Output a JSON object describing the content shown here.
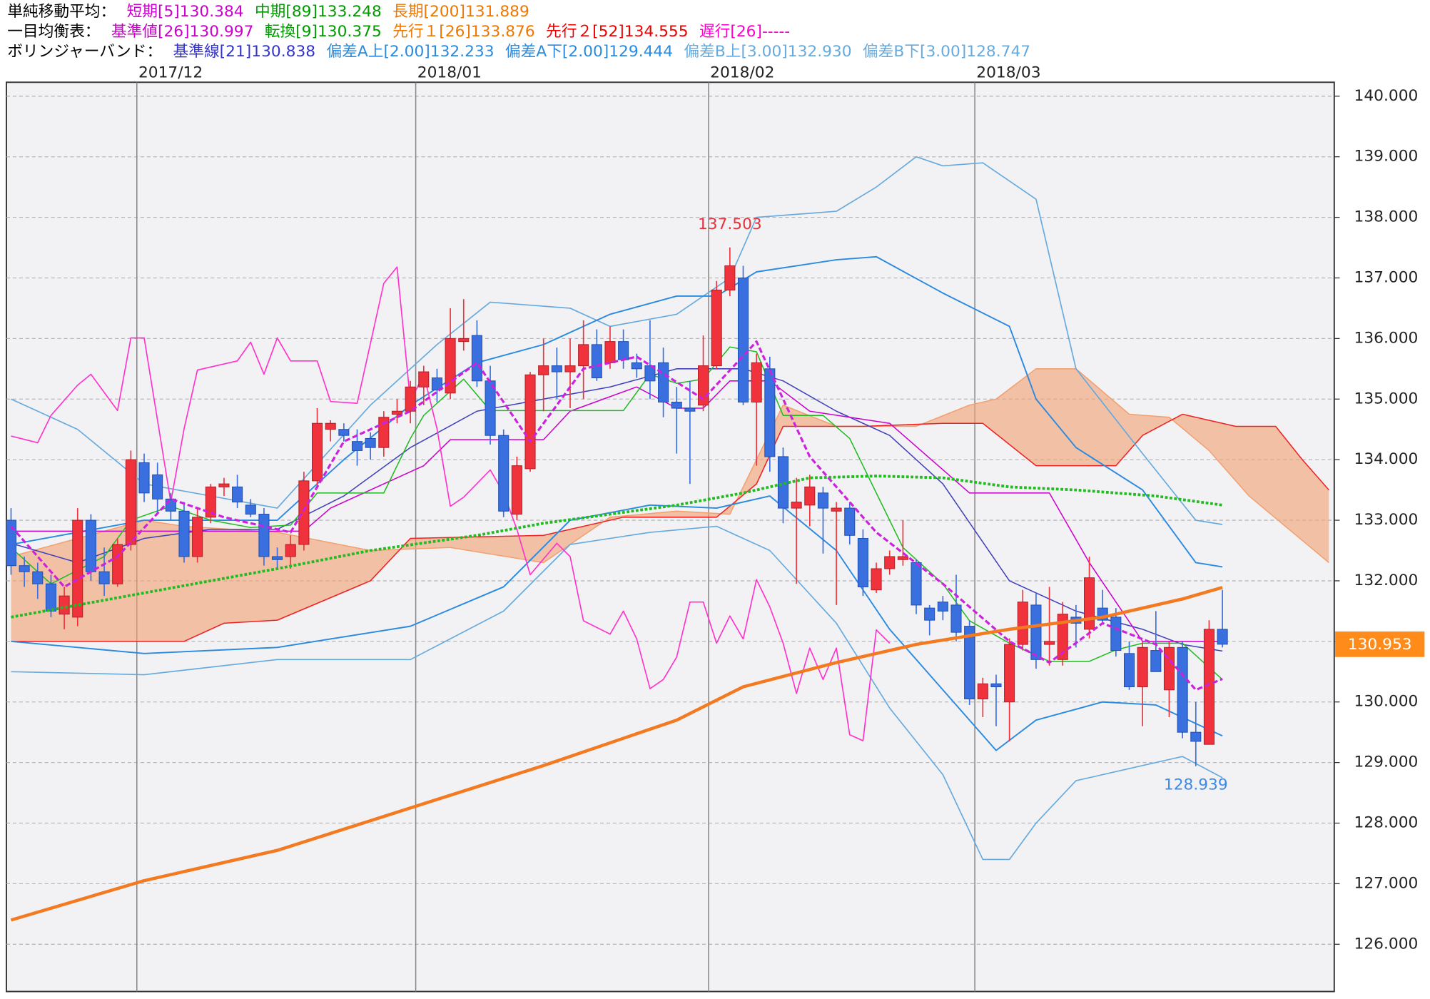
{
  "chart_data": {
    "type": "candlestick",
    "header": [
      [
        {
          "text": "単純移動平均：",
          "color": "#000000"
        },
        {
          "text": "短期[5]130.384",
          "color": "#cc00cc"
        },
        {
          "text": "中期[89]133.248",
          "color": "#009900"
        },
        {
          "text": "長期[200]131.889",
          "color": "#ee7700"
        }
      ],
      [
        {
          "text": "一目均衡表：",
          "color": "#000000"
        },
        {
          "text": "基準値[26]130.997",
          "color": "#cc00cc"
        },
        {
          "text": "転換[9]130.375",
          "color": "#009900"
        },
        {
          "text": "先行１[26]133.876",
          "color": "#ee7700"
        },
        {
          "text": "先行２[52]134.555",
          "color": "#ee0000"
        },
        {
          "text": "遅行[26]-----",
          "color": "#ff00cc"
        }
      ],
      [
        {
          "text": "ボリンジャーバンド：",
          "color": "#000000"
        },
        {
          "text": "基準線[21]130.838",
          "color": "#3333cc"
        },
        {
          "text": "偏差A上[2.00]132.233",
          "color": "#2a8ae0"
        },
        {
          "text": "偏差A下[2.00]129.444",
          "color": "#2a8ae0"
        },
        {
          "text": "偏差B上[3.00]132.930",
          "color": "#66aadd"
        },
        {
          "text": "偏差B下[3.00]128.747",
          "color": "#66aadd"
        }
      ]
    ],
    "open": [
      133.0,
      132.25,
      132.15,
      131.95,
      131.45,
      131.4,
      133.0,
      132.15,
      131.95,
      132.6,
      133.95,
      133.75,
      133.35,
      133.15,
      132.4,
      133.05,
      133.55,
      133.55,
      133.25,
      133.1,
      132.4,
      132.4,
      132.6,
      133.65,
      134.5,
      134.5,
      134.3,
      134.35,
      134.2,
      134.75,
      134.8,
      135.2,
      135.35,
      135.1,
      135.95,
      136.05,
      135.3,
      134.4,
      133.1,
      133.85,
      135.4,
      135.55,
      135.45,
      135.55,
      135.9,
      135.6,
      135.95,
      135.6,
      135.55,
      135.6,
      134.95,
      134.85,
      134.9,
      135.55,
      136.8,
      137.0,
      134.95,
      135.5,
      134.05,
      133.2,
      133.25,
      133.45,
      133.15,
      133.2,
      132.7,
      131.85,
      132.2,
      132.35,
      132.3,
      131.55,
      131.65,
      131.6,
      131.25,
      130.05,
      130.3,
      130.0,
      130.95,
      131.6,
      130.95,
      130.7,
      131.4,
      131.2,
      131.55,
      131.4,
      130.8,
      130.25,
      130.85,
      130.2,
      130.9,
      129.5,
      129.3,
      131.2
    ],
    "high": [
      133.2,
      132.4,
      132.3,
      132.1,
      131.9,
      133.2,
      133.1,
      132.55,
      132.7,
      134.15,
      134.1,
      133.95,
      133.45,
      133.3,
      133.2,
      133.6,
      133.7,
      133.75,
      133.35,
      133.2,
      132.55,
      132.75,
      133.8,
      134.85,
      134.65,
      134.6,
      134.5,
      134.45,
      134.8,
      135.0,
      135.3,
      135.55,
      135.5,
      136.5,
      136.65,
      136.3,
      135.55,
      134.5,
      134.05,
      135.45,
      136.0,
      135.85,
      136.0,
      136.3,
      136.15,
      136.2,
      136.15,
      135.75,
      136.3,
      135.85,
      135.2,
      135.3,
      136.05,
      136.95,
      137.503,
      137.2,
      135.75,
      135.7,
      134.2,
      133.7,
      133.75,
      133.55,
      133.3,
      133.3,
      132.85,
      132.3,
      132.5,
      133.0,
      132.35,
      131.6,
      131.75,
      132.1,
      131.35,
      130.4,
      130.45,
      131.05,
      131.85,
      131.8,
      131.9,
      131.65,
      131.6,
      132.4,
      131.85,
      131.55,
      131.0,
      131.0,
      131.5,
      131.0,
      131.0,
      130.0,
      131.35,
      131.85
    ],
    "low": [
      132.1,
      131.9,
      131.7,
      131.4,
      131.2,
      131.25,
      132.0,
      131.75,
      131.9,
      132.5,
      133.3,
      133.1,
      133.0,
      132.3,
      132.3,
      132.95,
      133.4,
      133.2,
      133.05,
      132.25,
      132.2,
      132.2,
      132.5,
      133.55,
      134.3,
      134.3,
      133.9,
      134.0,
      134.05,
      134.6,
      134.6,
      134.9,
      134.95,
      135.0,
      135.8,
      135.2,
      134.25,
      133.05,
      133.0,
      133.8,
      134.8,
      135.0,
      134.85,
      135.0,
      135.3,
      135.5,
      135.5,
      135.35,
      135.0,
      134.7,
      134.1,
      133.6,
      134.8,
      135.5,
      136.7,
      134.9,
      133.9,
      133.8,
      132.95,
      131.95,
      132.9,
      132.45,
      131.6,
      132.6,
      131.75,
      131.8,
      132.1,
      132.25,
      131.45,
      131.1,
      131.35,
      131.0,
      129.95,
      129.75,
      129.6,
      129.35,
      130.85,
      130.55,
      130.6,
      130.6,
      130.9,
      131.05,
      131.3,
      130.75,
      130.2,
      129.6,
      130.5,
      129.75,
      129.4,
      128.939,
      129.3,
      130.9
    ],
    "close": [
      132.25,
      132.15,
      131.95,
      131.5,
      131.75,
      133.0,
      132.15,
      131.95,
      132.6,
      134.0,
      133.45,
      133.35,
      133.15,
      132.4,
      133.05,
      133.55,
      133.6,
      133.3,
      133.1,
      132.4,
      132.35,
      132.6,
      133.65,
      134.6,
      134.6,
      134.4,
      134.15,
      134.2,
      134.7,
      134.8,
      135.2,
      135.45,
      135.15,
      136.0,
      136.0,
      135.3,
      134.4,
      133.15,
      133.9,
      135.4,
      135.55,
      135.45,
      135.55,
      135.9,
      135.35,
      135.95,
      135.65,
      135.5,
      135.3,
      134.95,
      134.85,
      134.8,
      135.55,
      136.8,
      137.2,
      134.95,
      135.6,
      134.05,
      133.2,
      133.3,
      133.55,
      133.2,
      133.2,
      132.75,
      131.9,
      132.2,
      132.4,
      132.4,
      131.6,
      131.35,
      131.5,
      131.15,
      130.05,
      130.3,
      130.25,
      130.95,
      131.65,
      130.7,
      131.0,
      131.45,
      131.3,
      132.05,
      131.35,
      130.85,
      130.25,
      130.9,
      130.5,
      130.9,
      129.5,
      129.35,
      131.2,
      130.953
    ],
    "up_color": "#f0323c",
    "down_color": "#3a6fe0",
    "cloud_color": "#f2a070",
    "lines": [
      {
        "color": "#f2a070",
        "width": 1.2,
        "x": [
          0,
          10,
          13,
          20,
          27,
          33,
          40,
          45,
          50,
          54,
          56,
          58,
          62,
          68,
          72,
          74,
          77,
          80,
          84,
          87,
          90,
          93,
          96,
          99
        ],
        "values": [
          132.4,
          133.0,
          132.9,
          132.8,
          132.5,
          132.55,
          132.3,
          133.05,
          133.15,
          133.1,
          134.0,
          134.9,
          134.55,
          134.55,
          134.9,
          135.0,
          135.5,
          135.5,
          134.75,
          134.7,
          134.15,
          133.4,
          132.85,
          132.3
        ]
      },
      {
        "color": "#ee2222",
        "width": 1.2,
        "x": [
          0,
          13,
          16,
          20,
          27,
          30,
          40,
          46,
          53,
          56,
          58,
          64,
          70,
          73,
          77,
          83,
          85,
          88,
          92,
          95,
          97,
          99
        ],
        "values": [
          131.0,
          131.0,
          131.3,
          131.35,
          132.0,
          132.7,
          132.75,
          133.05,
          133.05,
          133.6,
          134.55,
          134.55,
          134.6,
          134.6,
          133.9,
          133.9,
          134.4,
          134.75,
          134.55,
          134.55,
          134.0,
          133.5
        ]
      },
      {
        "color": "#66aadd",
        "width": 1.3,
        "x": [
          0,
          5,
          10,
          20,
          27,
          32,
          36,
          42,
          45,
          50,
          54,
          56,
          62,
          65,
          68,
          70,
          73,
          77,
          80,
          85,
          89,
          91
        ],
        "values": [
          135.0,
          134.5,
          133.6,
          133.2,
          134.9,
          135.9,
          136.6,
          136.5,
          136.2,
          136.4,
          137.0,
          138.0,
          138.1,
          138.5,
          139.0,
          138.85,
          138.9,
          138.3,
          135.5,
          134.1,
          133.0,
          132.93
        ]
      },
      {
        "color": "#66aadd",
        "width": 1.3,
        "x": [
          0,
          10,
          20,
          30,
          37,
          42,
          48,
          53,
          57,
          62,
          66,
          70,
          73,
          75,
          77,
          80,
          84,
          88,
          91
        ],
        "values": [
          130.5,
          130.45,
          130.7,
          130.7,
          131.5,
          132.6,
          132.8,
          132.9,
          132.5,
          131.3,
          129.9,
          128.8,
          127.4,
          127.4,
          128.0,
          128.7,
          128.9,
          129.1,
          128.75
        ]
      },
      {
        "color": "#2a8ae0",
        "width": 1.5,
        "x": [
          0,
          10,
          20,
          25,
          30,
          35,
          40,
          45,
          50,
          53,
          56,
          62,
          65,
          70,
          75,
          77,
          80,
          85,
          89,
          91
        ],
        "values": [
          132.6,
          133.0,
          133.0,
          134.0,
          134.9,
          135.6,
          135.9,
          136.4,
          136.7,
          136.7,
          137.1,
          137.3,
          137.35,
          136.75,
          136.2,
          135.0,
          134.2,
          133.5,
          132.3,
          132.23
        ]
      },
      {
        "color": "#2a8ae0",
        "width": 1.5,
        "x": [
          0,
          10,
          20,
          30,
          37,
          42,
          48,
          53,
          57,
          62,
          66,
          70,
          74,
          77,
          82,
          86,
          91
        ],
        "values": [
          131.0,
          130.8,
          130.9,
          131.25,
          131.9,
          133.0,
          133.25,
          133.2,
          133.4,
          132.5,
          131.2,
          130.2,
          129.2,
          129.7,
          130.0,
          129.95,
          129.44
        ]
      },
      {
        "color": "#4040bb",
        "width": 1.2,
        "x": [
          0,
          5,
          10,
          15,
          20,
          25,
          30,
          35,
          40,
          45,
          50,
          55,
          58,
          62,
          66,
          70,
          75,
          80,
          85,
          88,
          91
        ],
        "values": [
          132.62,
          132.3,
          132.7,
          132.85,
          132.85,
          133.4,
          134.2,
          134.8,
          135.0,
          135.2,
          135.5,
          135.5,
          135.3,
          134.8,
          134.4,
          133.6,
          132.0,
          131.5,
          131.2,
          130.95,
          130.84
        ]
      },
      {
        "color": "#cc00cc",
        "width": 1.2,
        "x": [
          0,
          22,
          24,
          27,
          31,
          33,
          40,
          42,
          47,
          50,
          52,
          54,
          57,
          60,
          66,
          72,
          78,
          81,
          85,
          91
        ],
        "values": [
          132.82,
          132.82,
          133.2,
          133.5,
          133.9,
          134.33,
          134.33,
          134.8,
          135.2,
          134.85,
          134.85,
          135.3,
          135.3,
          134.8,
          134.6,
          133.45,
          133.45,
          132.3,
          131.0,
          131.0
        ]
      },
      {
        "color": "#22bb22",
        "width": 1.2,
        "x": [
          0,
          3,
          7,
          9,
          12,
          15,
          18,
          21,
          23,
          28,
          30,
          31,
          34,
          36,
          37,
          40,
          46,
          48,
          50,
          52,
          54,
          56,
          58,
          61,
          63,
          65,
          67,
          70,
          72,
          75,
          78,
          81,
          83,
          85,
          88,
          91
        ],
        "values": [
          132.55,
          131.95,
          132.4,
          133.0,
          133.23,
          133.0,
          132.88,
          132.92,
          133.45,
          133.45,
          134.35,
          134.73,
          135.33,
          134.81,
          134.81,
          134.81,
          134.81,
          135.41,
          135.26,
          135.33,
          135.86,
          135.78,
          134.73,
          134.73,
          134.35,
          133.45,
          132.55,
          131.95,
          131.34,
          130.97,
          130.67,
          130.67,
          130.86,
          130.97,
          130.97,
          130.37
        ]
      },
      {
        "color": "#ff33cc",
        "width": 1.3,
        "x": [
          0,
          2,
          3,
          5,
          6,
          8,
          9,
          10,
          12,
          13,
          14,
          17,
          18,
          19,
          20,
          21,
          23,
          24,
          26,
          28,
          29,
          30,
          31,
          32,
          33,
          34,
          36,
          37,
          38,
          39,
          41,
          42,
          43,
          45,
          46,
          47,
          48,
          49,
          50,
          51,
          52,
          53,
          54,
          55,
          56,
          57,
          58,
          59,
          60,
          61,
          62,
          63,
          64,
          65,
          66
        ],
        "values": [
          134.39,
          134.28,
          134.73,
          135.23,
          135.41,
          134.81,
          136.01,
          136.01,
          133.3,
          134.51,
          135.48,
          135.63,
          135.94,
          135.41,
          136.01,
          135.63,
          135.63,
          134.96,
          134.93,
          136.91,
          137.18,
          134.96,
          135.41,
          134.51,
          133.23,
          133.38,
          133.83,
          133.45,
          132.85,
          132.1,
          132.62,
          132.4,
          131.34,
          131.12,
          131.5,
          131.04,
          130.22,
          130.37,
          130.74,
          131.65,
          131.65,
          130.97,
          131.42,
          131.04,
          132.02,
          131.57,
          130.97,
          130.14,
          130.89,
          130.37,
          130.89,
          129.46,
          129.36,
          131.19,
          130.97
        ]
      },
      {
        "color": "#22bb22",
        "width": 3,
        "dash": "dotted",
        "x": [
          0,
          10,
          20,
          27,
          35,
          40,
          45,
          50,
          55,
          60,
          65,
          70,
          75,
          80,
          86,
          91
        ],
        "values": [
          131.4,
          131.8,
          132.2,
          132.5,
          132.75,
          132.95,
          133.1,
          133.25,
          133.45,
          133.7,
          133.73,
          133.7,
          133.55,
          133.5,
          133.4,
          133.25
        ]
      },
      {
        "color": "#cc22dd",
        "width": 2.5,
        "dash": "dashed",
        "x": [
          0,
          4,
          8,
          12,
          16,
          21,
          25,
          30,
          35,
          39,
          43,
          47,
          52,
          56,
          60,
          65,
          70,
          75,
          78,
          82,
          86,
          89,
          91
        ],
        "values": [
          132.9,
          131.9,
          132.4,
          133.35,
          133.05,
          132.8,
          134.3,
          134.8,
          135.6,
          134.3,
          135.5,
          135.7,
          135.0,
          135.95,
          134.05,
          132.8,
          131.95,
          131.0,
          130.65,
          131.3,
          130.95,
          130.2,
          130.38
        ]
      },
      {
        "color": "#f37a20",
        "width": 3.5,
        "x": [
          0,
          10,
          20,
          30,
          40,
          50,
          55,
          62,
          68,
          75,
          82,
          88,
          91
        ],
        "values": [
          126.4,
          127.05,
          127.55,
          128.25,
          128.95,
          129.7,
          130.25,
          130.65,
          130.95,
          131.2,
          131.4,
          131.7,
          131.89
        ]
      }
    ],
    "high_label_color": "#e8303a",
    "low_label_color": "#3a8ae8",
    "price_tag_color": "#ff8c1a",
    "xlim": [
      -0.35,
      99.4
    ],
    "ylim": [
      125.22,
      140.23
    ],
    "xticks": [
      {
        "value": 9.45,
        "label": "2017/12"
      },
      {
        "value": 30.4,
        "label": "2018/01"
      },
      {
        "value": 52.4,
        "label": "2018/02"
      },
      {
        "value": 72.4,
        "label": "2018/03"
      }
    ],
    "yticks": [
      {
        "value": 126,
        "label": "126.000"
      },
      {
        "value": 127,
        "label": "127.000"
      },
      {
        "value": 128,
        "label": "128.000"
      },
      {
        "value": 129,
        "label": "129.000"
      },
      {
        "value": 130,
        "label": "130.000"
      },
      {
        "value": 131,
        "label": "131.000"
      },
      {
        "value": 132,
        "label": "132.000"
      },
      {
        "value": 133,
        "label": "133.000"
      },
      {
        "value": 134,
        "label": "134.000"
      },
      {
        "value": 135,
        "label": "135.000"
      },
      {
        "value": 136,
        "label": "136.000"
      },
      {
        "value": 137,
        "label": "137.000"
      },
      {
        "value": 138,
        "label": "138.000"
      },
      {
        "value": 139,
        "label": "139.000"
      },
      {
        "value": 140,
        "label": "140.000"
      }
    ],
    "grid": true
  }
}
